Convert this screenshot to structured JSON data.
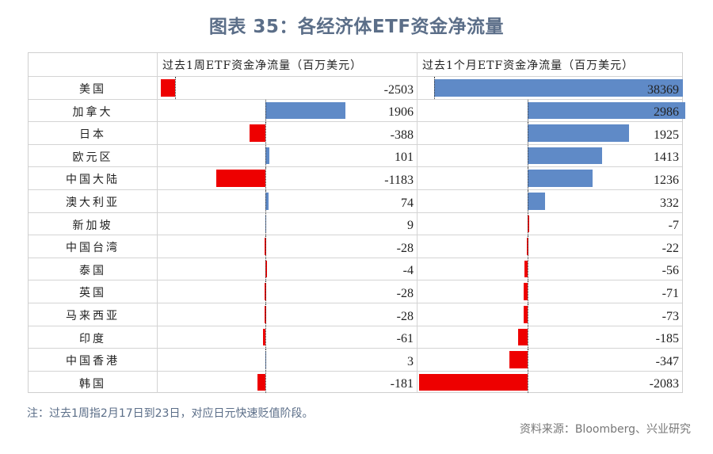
{
  "title": "图表 35：各经济体ETF资金净流量",
  "table": {
    "col_header_1": "",
    "col_header_2": "过去1周ETF资金净流量（百万美元）",
    "col_header_3": "过去1个月ETF资金净流量（百万美元）",
    "rows": [
      {
        "name": "美国",
        "week": "-2503",
        "month": "38369"
      },
      {
        "name": "加拿大",
        "week": "1906",
        "month": "2986"
      },
      {
        "name": "日本",
        "week": "-388",
        "month": "1925"
      },
      {
        "name": "欧元区",
        "week": "101",
        "month": "1413"
      },
      {
        "name": "中国大陆",
        "week": "-1183",
        "month": "1236"
      },
      {
        "name": "澳大利亚",
        "week": "74",
        "month": "332"
      },
      {
        "name": "新加坡",
        "week": "9",
        "month": "-7"
      },
      {
        "name": "中国台湾",
        "week": "-28",
        "month": "-22"
      },
      {
        "name": "泰国",
        "week": "-4",
        "month": "-56"
      },
      {
        "name": "英国",
        "week": "-28",
        "month": "-71"
      },
      {
        "name": "马来西亚",
        "week": "-28",
        "month": "-73"
      },
      {
        "name": "印度",
        "week": "-61",
        "month": "-185"
      },
      {
        "name": "中国香港",
        "week": "3",
        "month": "-347"
      },
      {
        "name": "韩国",
        "week": "-181",
        "month": "-2083"
      }
    ]
  },
  "colors": {
    "positive": "#5f8ac7",
    "negative": "#ee0000",
    "title": "#5b6e88"
  },
  "note": "注：过去1周指2月17日到23日，对应日元快速贬值阶段。",
  "source": "资料来源：Bloomberg、兴业研究",
  "chart_data": {
    "type": "table",
    "title": "图表 35：各经济体ETF资金净流量",
    "categories": [
      "美国",
      "加拿大",
      "日本",
      "欧元区",
      "中国大陆",
      "澳大利亚",
      "新加坡",
      "中国台湾",
      "泰国",
      "英国",
      "马来西亚",
      "印度",
      "中国香港",
      "韩国"
    ],
    "series": [
      {
        "name": "过去1周ETF资金净流量（百万美元）",
        "values": [
          -2503,
          1906,
          -388,
          101,
          -1183,
          74,
          9,
          -28,
          -4,
          -28,
          -28,
          -61,
          3,
          -181
        ]
      },
      {
        "name": "过去1个月ETF资金净流量（百万美元）",
        "values": [
          38369,
          2986,
          1925,
          1413,
          1236,
          332,
          -7,
          -22,
          -56,
          -71,
          -73,
          -185,
          -347,
          -2083
        ]
      }
    ],
    "embedded_bars": true,
    "positive_color": "#5f8ac7",
    "negative_color": "#ee0000",
    "note": "注：过去1周指2月17日到23日，对应日元快速贬值阶段。",
    "source": "资料来源：Bloomberg、兴业研究"
  }
}
